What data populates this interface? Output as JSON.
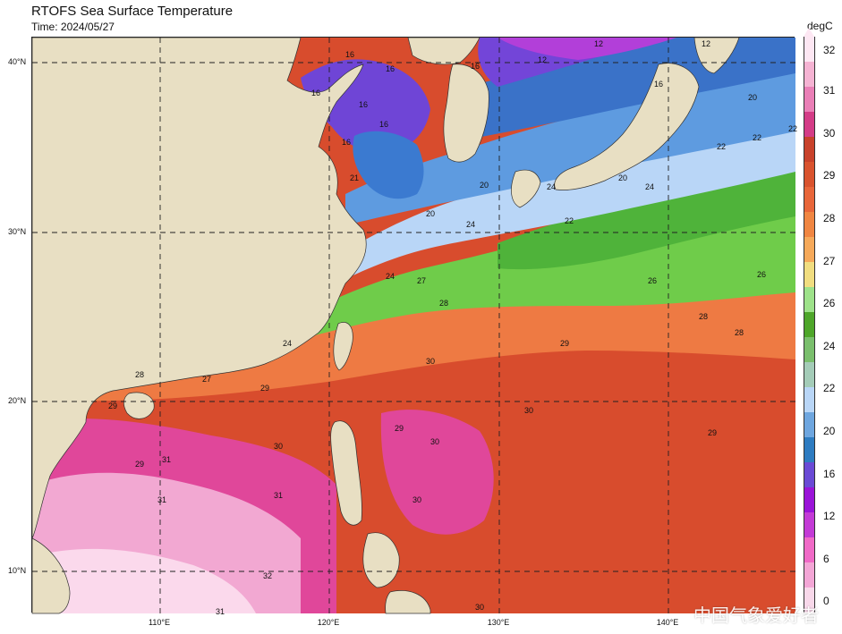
{
  "header": {
    "title": "RTOFS Sea Surface Temperature",
    "time": "Time: 2024/05/27"
  },
  "axes": {
    "lat_labels": [
      "40°N",
      "30°N",
      "20°N",
      "10°N"
    ],
    "lon_labels": [
      "110°E",
      "120°E",
      "130°E",
      "140°E"
    ]
  },
  "colorbar": {
    "unit": "degC",
    "labels": [
      "32",
      "31",
      "30",
      "29",
      "28",
      "27",
      "26",
      "24",
      "22",
      "20",
      "16",
      "12",
      "6",
      "0"
    ],
    "colors": [
      "#fde7f3",
      "#f5b3d3",
      "#ea7fb7",
      "#d43c87",
      "#c8422b",
      "#d9532e",
      "#e8663a",
      "#f08642",
      "#f6a95a",
      "#f1dd80",
      "#9ee28a",
      "#4ea62a",
      "#7abf6d",
      "#a4ccb8",
      "#b9d6f7",
      "#6ea6df",
      "#2e7cc1",
      "#6a4ad5",
      "#9a14d8",
      "#c33bd6",
      "#f06ac7",
      "#f3a6d6",
      "#f8d8ea"
    ]
  },
  "map_colors": {
    "land": "#e8dfc3",
    "ocean_warm_core": "#d5492c",
    "ocean_warm": "#e55d37",
    "ocean_orange": "#f08a49",
    "ocean_green": "#6fcc4a",
    "ocean_lightgreen": "#9bdd7a",
    "ocean_lightblue": "#b9d6f7",
    "ocean_blue": "#5e9be0",
    "ocean_deepblue": "#3a72c8",
    "ocean_purple": "#7345d8",
    "ocean_violet": "#9b1fe0",
    "ocean_pink": "#e0479a",
    "ocean_lightpink": "#f2a8d2",
    "ocean_palepink": "#fbd9ec"
  },
  "contour_labels": [
    "16",
    "16",
    "16",
    "16",
    "16",
    "12",
    "12",
    "12",
    "16",
    "16",
    "16",
    "20",
    "20",
    "20",
    "20",
    "21",
    "22",
    "22",
    "22",
    "22",
    "24",
    "24",
    "24",
    "24",
    "24",
    "26",
    "26",
    "27",
    "27",
    "28",
    "28",
    "28",
    "28",
    "29",
    "29",
    "29",
    "29",
    "29",
    "29",
    "30",
    "30",
    "30",
    "30",
    "30",
    "30",
    "31",
    "31",
    "31",
    "31",
    "32"
  ],
  "watermark": "中国气象爱好者"
}
